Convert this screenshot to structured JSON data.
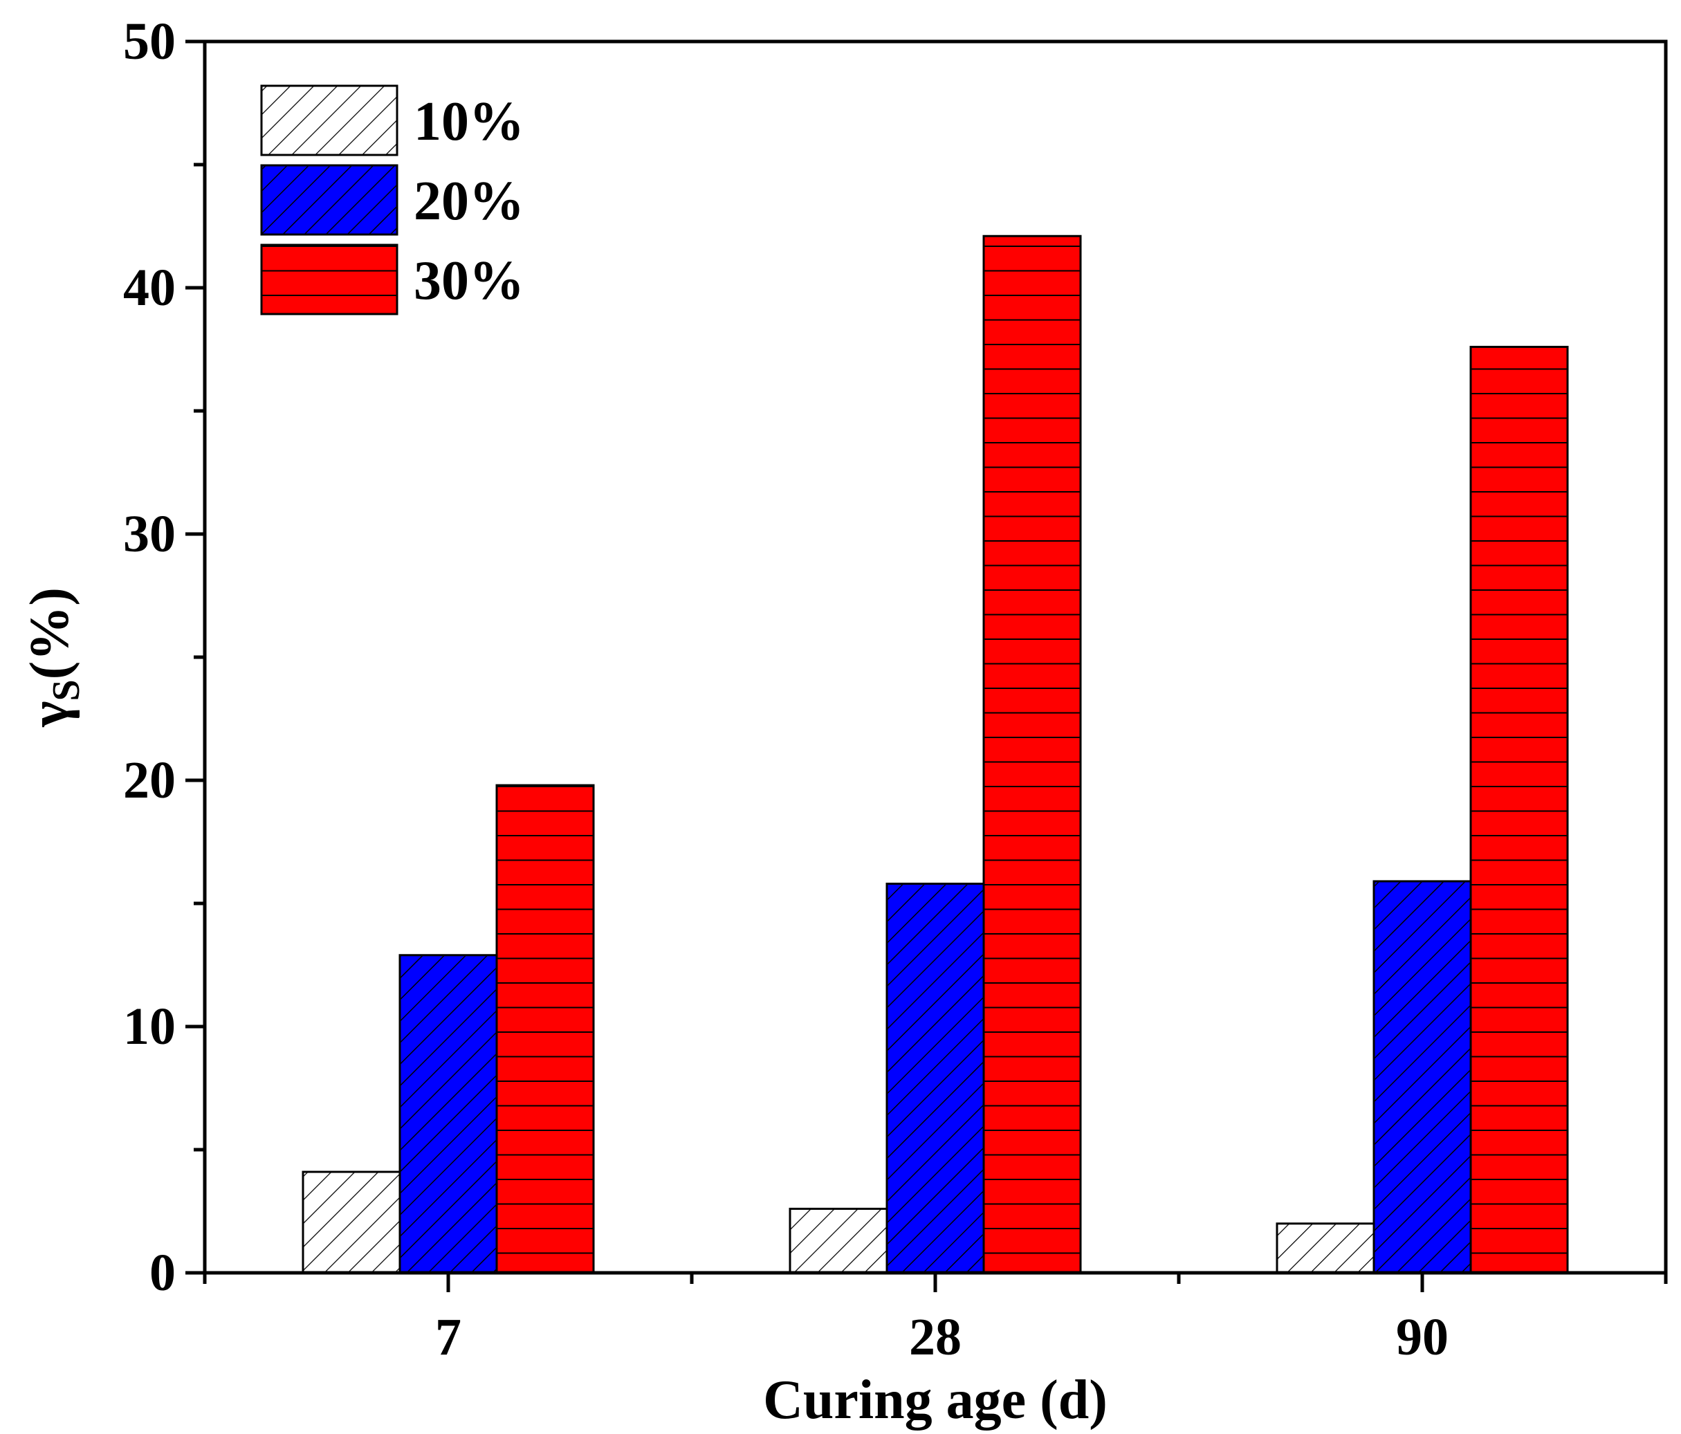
{
  "chart_data": {
    "type": "bar",
    "title": "",
    "xlabel": "Curing age (d)",
    "ylabel": "γS(%)",
    "ylabel_main": "γ",
    "ylabel_sub": "S",
    "ylabel_rest": "(%)",
    "categories": [
      "7",
      "28",
      "90"
    ],
    "series": [
      {
        "name": "10%",
        "values": [
          4.1,
          2.6,
          2.0
        ],
        "color": "#ffffff",
        "pattern": "diagonal-light"
      },
      {
        "name": "20%",
        "values": [
          12.9,
          15.8,
          15.9
        ],
        "color": "#0000ff",
        "pattern": "diagonal-dense"
      },
      {
        "name": "30%",
        "values": [
          19.8,
          42.1,
          37.6
        ],
        "color": "#ff0000",
        "pattern": "horizontal"
      }
    ],
    "ylim": [
      0,
      50
    ],
    "yticks": [
      0,
      10,
      20,
      30,
      40,
      50
    ],
    "yminor_step": 5,
    "grid": false,
    "legend_position": "top-left"
  }
}
